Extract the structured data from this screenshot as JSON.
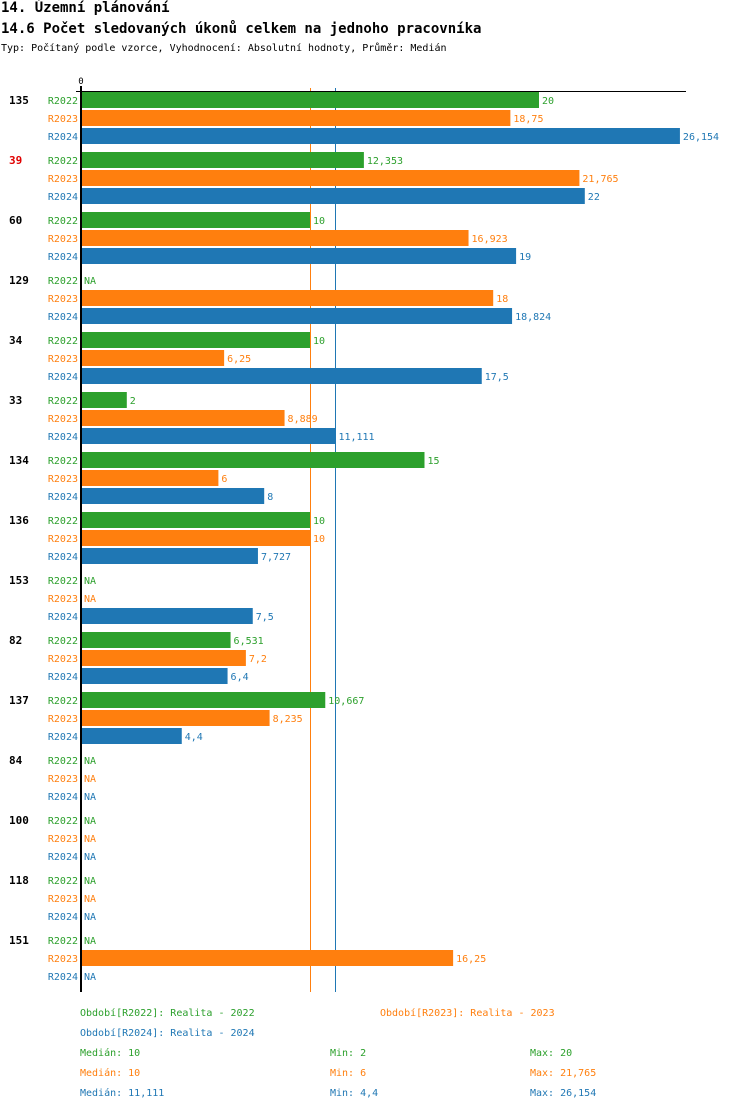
{
  "header": {
    "section_title": "14. Územní plánování",
    "chart_title": "14.6 Počet sledovaných úkonů celkem na jednoho pracovníka",
    "subtitle": "Typ: Počítaný podle vzorce, Vyhodnocení: Absolutní hodnoty, Průměr: Medián"
  },
  "colors": {
    "R2022": "#2ca02c",
    "R2023": "#ff7f0e",
    "R2024": "#1f77b4",
    "highlight": "#e00000",
    "axis": "#000000"
  },
  "chart_data": {
    "type": "bar",
    "orientation": "horizontal",
    "title": "14.6 Počet sledovaných úkonů celkem na jednoho pracovníka",
    "xlabel": "",
    "ylabel": "",
    "x_tick_labels": [
      "0"
    ],
    "xlim": [
      0,
      26.4
    ],
    "categories": [
      "135",
      "39",
      "60",
      "129",
      "34",
      "33",
      "134",
      "136",
      "153",
      "82",
      "137",
      "84",
      "100",
      "118",
      "151"
    ],
    "highlighted_category": "39",
    "series": [
      {
        "name": "R2022",
        "values": [
          20,
          12.353,
          10,
          null,
          10,
          2,
          15,
          10,
          null,
          6.531,
          10.667,
          null,
          null,
          null,
          null
        ],
        "labels": [
          "20",
          "12,353",
          "10",
          "NA",
          "10",
          "2",
          "15",
          "10",
          "NA",
          "6,531",
          "10,667",
          "NA",
          "NA",
          "NA",
          "NA"
        ]
      },
      {
        "name": "R2023",
        "values": [
          18.75,
          21.765,
          16.923,
          18,
          6.25,
          8.889,
          6,
          10,
          null,
          7.2,
          8.235,
          null,
          null,
          null,
          16.25
        ],
        "labels": [
          "18,75",
          "21,765",
          "16,923",
          "18",
          "6,25",
          "8,889",
          "6",
          "10",
          "NA",
          "7,2",
          "8,235",
          "NA",
          "NA",
          "NA",
          "16,25"
        ]
      },
      {
        "name": "R2024",
        "values": [
          26.154,
          22,
          19,
          18.824,
          17.5,
          11.111,
          8,
          7.727,
          7.5,
          6.4,
          4.4,
          null,
          null,
          null,
          null
        ],
        "labels": [
          "26,154",
          "22",
          "19",
          "18,824",
          "17,5",
          "11,111",
          "8",
          "7,727",
          "7,5",
          "6,4",
          "4,4",
          "NA",
          "NA",
          "NA",
          "NA"
        ]
      }
    ],
    "reference_lines": [
      {
        "series": "R2022",
        "type": "median",
        "value": 10
      },
      {
        "series": "R2023",
        "type": "median",
        "value": 10
      },
      {
        "series": "R2024",
        "type": "median",
        "value": 11.111
      }
    ],
    "legend_position": "bottom"
  },
  "legend": {
    "periods": [
      {
        "key": "R2022",
        "text": "Období[R2022]: Realita - 2022"
      },
      {
        "key": "R2023",
        "text": "Období[R2023]: Realita - 2023"
      },
      {
        "key": "R2024",
        "text": "Období[R2024]: Realita - 2024"
      }
    ],
    "stats": [
      {
        "key": "R2022",
        "median": "Medián: 10",
        "min": "Min: 2",
        "max": "Max: 20"
      },
      {
        "key": "R2023",
        "median": "Medián: 10",
        "min": "Min: 6",
        "max": "Max: 21,765"
      },
      {
        "key": "R2024",
        "median": "Medián: 11,111",
        "min": "Min: 4,4",
        "max": "Max: 26,154"
      }
    ]
  }
}
